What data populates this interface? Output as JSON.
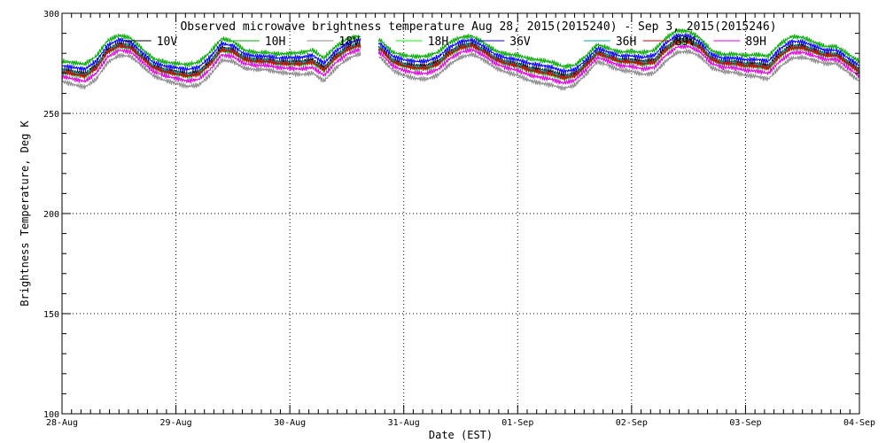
{
  "chart_data": {
    "type": "line",
    "title": "Observed microwave brightness temperature Aug 28, 2015(2015240) - Sep  3, 2015(2015246)",
    "xlabel": "Date (EST)",
    "ylabel": "Brightness Temperature, Deg K",
    "xlim": [
      0,
      7
    ],
    "ylim": [
      100,
      300
    ],
    "yticks": [
      100,
      150,
      200,
      250,
      300
    ],
    "xticks": [
      {
        "value": 0,
        "label": "28-Aug"
      },
      {
        "value": 1,
        "label": "29-Aug"
      },
      {
        "value": 2,
        "label": "30-Aug"
      },
      {
        "value": 3,
        "label": "31-Aug"
      },
      {
        "value": 4,
        "label": "01-Sep"
      },
      {
        "value": 5,
        "label": "02-Sep"
      },
      {
        "value": 6,
        "label": "03-Sep"
      },
      {
        "value": 7,
        "label": "04-Sep"
      }
    ],
    "grid": true,
    "gap": [
      2.62,
      2.78
    ],
    "base_profile": {
      "x": [
        0,
        0.1,
        0.2,
        0.3,
        0.4,
        0.5,
        0.6,
        0.7,
        0.8,
        0.9,
        1.0,
        1.1,
        1.2,
        1.3,
        1.4,
        1.5,
        1.6,
        1.7,
        1.8,
        1.9,
        2.0,
        2.1,
        2.2,
        2.3,
        2.4,
        2.5,
        2.6,
        2.8,
        2.9,
        3.0,
        3.1,
        3.2,
        3.3,
        3.4,
        3.5,
        3.6,
        3.7,
        3.8,
        3.9,
        4.0,
        4.1,
        4.2,
        4.3,
        4.4,
        4.5,
        4.6,
        4.7,
        4.8,
        4.9,
        5.0,
        5.1,
        5.2,
        5.3,
        5.4,
        5.5,
        5.6,
        5.7,
        5.8,
        5.9,
        6.0,
        6.1,
        6.2,
        6.3,
        6.4,
        6.5,
        6.6,
        6.7,
        6.8,
        6.9,
        7.0
      ],
      "y": [
        272,
        271,
        270,
        274,
        282,
        285,
        284,
        279,
        274,
        272,
        271,
        270,
        271,
        276,
        283,
        282,
        278,
        277,
        277,
        276,
        276,
        276,
        277,
        273,
        279,
        283,
        285,
        283,
        277,
        275,
        274,
        274,
        276,
        281,
        284,
        285,
        282,
        278,
        276,
        275,
        273,
        272,
        271,
        269,
        270,
        275,
        281,
        279,
        277,
        277,
        276,
        277,
        283,
        287,
        287,
        284,
        278,
        276,
        276,
        275,
        275,
        274,
        280,
        284,
        284,
        282,
        280,
        280,
        276,
        272
      ]
    },
    "series": [
      {
        "name": "10V",
        "color": "#000000",
        "offset": 0.0,
        "legend_x": 0.55
      },
      {
        "name": "10H",
        "color": "#00aa00",
        "offset": 4.0,
        "legend_x": 1.5
      },
      {
        "name": "18V",
        "color": "#888888",
        "offset": -6.0,
        "legend_x": 2.15
      },
      {
        "name": "18H",
        "color": "#00ff00",
        "offset": -1.5,
        "legend_x": 2.93
      },
      {
        "name": "36V",
        "color": "#0000ff",
        "offset": 1.8,
        "legend_x": 3.65
      },
      {
        "name": "36H",
        "color": "#00aaaa",
        "offset": -0.8,
        "legend_x": 4.58
      },
      {
        "name": "89V",
        "color": "#cc0000",
        "offset": -1.2,
        "legend_x": 5.1
      },
      {
        "name": "89H",
        "color": "#dd00dd",
        "offset": -3.5,
        "legend_x": 5.72
      }
    ]
  }
}
